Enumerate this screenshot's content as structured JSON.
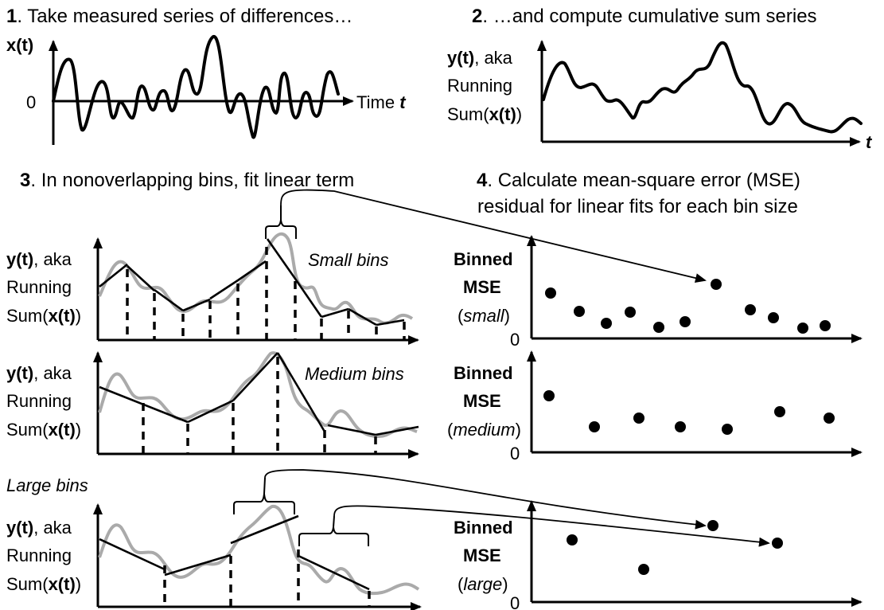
{
  "steps": {
    "s1_num": "1",
    "s1_text": ". Take measured series of differences…",
    "s2_num": "2",
    "s2_text": ". …and compute cumulative sum series",
    "s3_num": "3",
    "s3_text": ". In nonoverlapping bins, fit linear term",
    "s4_num": "4",
    "s4_line1": ". Calculate mean-square error (MSE)",
    "s4_line2": "residual for linear fits for each bin size"
  },
  "panel1": {
    "ylabel": "x(t)",
    "zero": "0",
    "xlabel_plain": "Time ",
    "xlabel_italic": "t"
  },
  "ylabel_running": {
    "y_bold": "y(t)",
    "aka": ", aka",
    "running": "Running",
    "sum_open": "Sum(",
    "sum_bold": "x(t)",
    "sum_close": ")"
  },
  "panel2": {
    "xlabel": "t"
  },
  "bins": {
    "small": "Small bins",
    "medium": "Medium bins",
    "large": "Large bins"
  },
  "mse": {
    "binned": "Binned",
    "mse": "MSE",
    "zero": "0",
    "small_tag": "small",
    "medium_tag": "medium",
    "large_tag": "large",
    "paren_open": "(",
    "paren_close": ")"
  }
}
